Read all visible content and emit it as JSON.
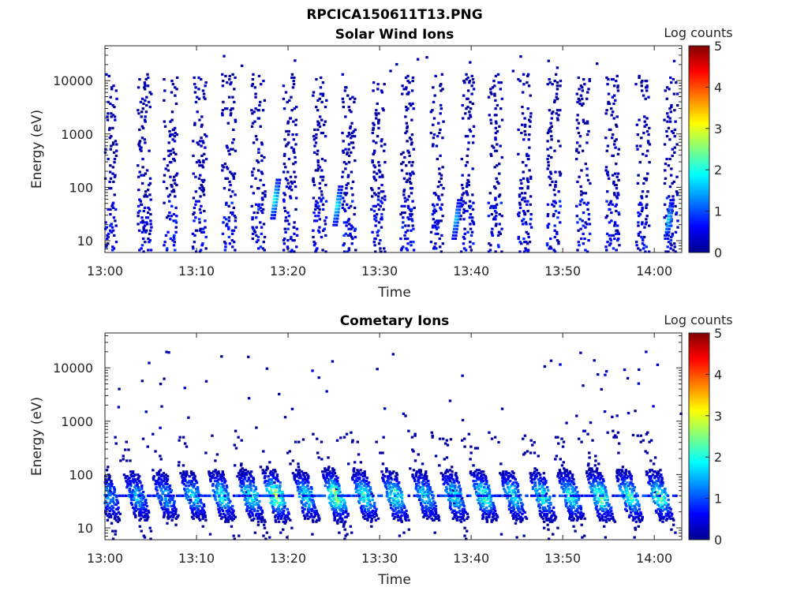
{
  "figure_title": "RPCICA150611T13.PNG",
  "colors": {
    "axis": "#262626",
    "colormap": [
      "#00008f",
      "#0000ff",
      "#0080ff",
      "#00ffff",
      "#80ff80",
      "#ffff00",
      "#ff8000",
      "#ff0000",
      "#800000"
    ]
  },
  "chart_data": [
    {
      "type": "heatmap",
      "title": "Solar Wind Ions",
      "xlabel": "Time",
      "ylabel": "Energy (eV)",
      "yscale": "log",
      "xlim": [
        "13:00",
        "14:03"
      ],
      "ylim": [
        6,
        45000
      ],
      "xticks": [
        "13:00",
        "13:10",
        "13:20",
        "13:30",
        "13:40",
        "13:50",
        "14:00"
      ],
      "yticks": [
        10,
        100,
        1000,
        10000
      ],
      "ytick_labels": [
        "10",
        "100",
        "1000",
        "10000"
      ],
      "colorbar": {
        "label": "Log counts",
        "range": [
          0,
          5
        ],
        "ticks": [
          "0",
          "1",
          "2",
          "3",
          "4",
          "5"
        ]
      },
      "scan_times_min": [
        0.4,
        4.2,
        7.0,
        10.2,
        13.4,
        16.6,
        20.1,
        23.3,
        26.5,
        29.7,
        32.9,
        36.2,
        39.4,
        42.5,
        45.7,
        48.9,
        52.1,
        55.3,
        58.6,
        61.7
      ],
      "bursts": [
        {
          "time_min": 18.5,
          "energy_ev": 60,
          "log_counts": 2.0
        },
        {
          "time_min": 25.3,
          "energy_ev": 45,
          "log_counts": 1.9
        },
        {
          "time_min": 38.3,
          "energy_ev": 25,
          "log_counts": 1.6
        },
        {
          "time_min": 61.5,
          "energy_ev": 25,
          "log_counts": 1.7
        }
      ]
    },
    {
      "type": "heatmap",
      "title": "Cometary Ions",
      "xlabel": "Time",
      "ylabel": "Energy (eV)",
      "yscale": "log",
      "xlim": [
        "13:00",
        "14:03"
      ],
      "ylim": [
        6,
        45000
      ],
      "xticks": [
        "13:00",
        "13:10",
        "13:20",
        "13:30",
        "13:40",
        "13:50",
        "14:00"
      ],
      "yticks": [
        10,
        100,
        1000,
        10000
      ],
      "ytick_labels": [
        "10",
        "100",
        "1000",
        "10000"
      ],
      "colorbar": {
        "label": "Log counts",
        "range": [
          0,
          5
        ],
        "ticks": [
          "0",
          "1",
          "2",
          "3",
          "4",
          "5"
        ]
      },
      "scan_times_min": [
        0.4,
        3.5,
        6.6,
        9.7,
        12.8,
        15.9,
        18.7,
        22.0,
        25.2,
        28.4,
        31.7,
        35.0,
        38.2,
        41.4,
        44.6,
        47.8,
        50.9,
        54.1,
        57.3,
        60.6
      ],
      "peak_energy_ev": 40,
      "peak_log_counts": [
        1.6,
        1.7,
        1.7,
        1.9,
        2.2,
        2.3,
        2.9,
        2.1,
        3.0,
        2.3,
        2.4,
        2.0,
        2.2,
        2.5,
        2.2,
        2.3,
        2.3,
        2.6,
        2.4,
        2.5
      ]
    }
  ]
}
